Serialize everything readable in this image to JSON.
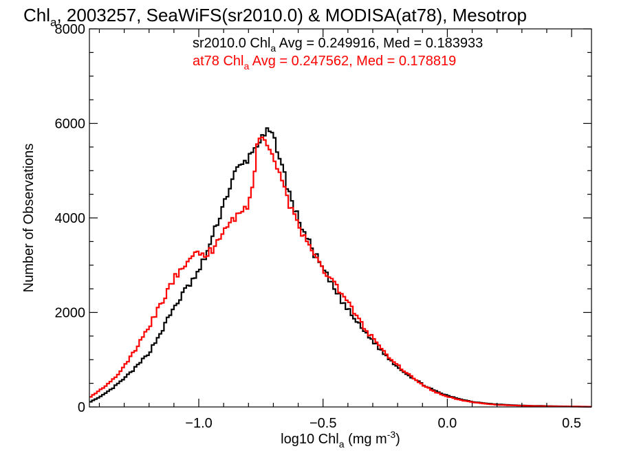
{
  "chart_data": {
    "type": "line",
    "step": true,
    "title": {
      "pre": "Chl",
      "sub": "a",
      "post": ", 2003257, SeaWiFS(sr2010.0) & MODISA(at78), Mesotrop"
    },
    "xlabel": {
      "pre": "log10 Chl",
      "sub": "a",
      "mid": " (mg m",
      "sup": "-3",
      "post": ")"
    },
    "ylabel": "Number of Observations",
    "xlim": [
      -1.44,
      0.58
    ],
    "ylim": [
      0,
      8000
    ],
    "xticks": [
      {
        "value": -1.0,
        "label": "−1.0"
      },
      {
        "value": -0.5,
        "label": "−0.5"
      },
      {
        "value": 0.0,
        "label": "0.0"
      },
      {
        "value": 0.5,
        "label": "0.5"
      }
    ],
    "yticks": [
      {
        "value": 0,
        "label": "0"
      },
      {
        "value": 2000,
        "label": "2000"
      },
      {
        "value": 4000,
        "label": "4000"
      },
      {
        "value": 6000,
        "label": "6000"
      },
      {
        "value": 8000,
        "label": "8000"
      }
    ],
    "annotations": [
      {
        "pre": "sr2010.0 Chl",
        "sub": "a",
        "post": " Avg = 0.249916, Med = 0.183933",
        "color": "#000000"
      },
      {
        "pre": "at78 Chl",
        "sub": "a",
        "post": " Avg = 0.247562, Med = 0.178819",
        "color": "#ff0000"
      }
    ],
    "series": [
      {
        "color": "#000000",
        "x": [
          -1.44,
          -1.4,
          -1.35,
          -1.3,
          -1.25,
          -1.2,
          -1.15,
          -1.1,
          -1.05,
          -1.0,
          -0.95,
          -0.9,
          -0.85,
          -0.82,
          -0.8,
          -0.78,
          -0.76,
          -0.74,
          -0.72,
          -0.7,
          -0.68,
          -0.66,
          -0.64,
          -0.62,
          -0.6,
          -0.58,
          -0.55,
          -0.5,
          -0.45,
          -0.4,
          -0.35,
          -0.3,
          -0.25,
          -0.2,
          -0.15,
          -0.1,
          -0.05,
          0.0,
          0.05,
          0.1,
          0.15,
          0.2,
          0.3,
          0.4,
          0.5,
          0.58
        ],
        "y": [
          100,
          200,
          380,
          600,
          850,
          1150,
          1600,
          2100,
          2500,
          2850,
          3500,
          4300,
          5000,
          5150,
          5250,
          5450,
          5600,
          5700,
          5850,
          5700,
          5400,
          5000,
          4600,
          4250,
          4000,
          3750,
          3400,
          2900,
          2450,
          2050,
          1700,
          1400,
          1100,
          850,
          650,
          480,
          340,
          240,
          170,
          110,
          80,
          55,
          30,
          20,
          10,
          5
        ]
      },
      {
        "color": "#ff0000",
        "x": [
          -1.44,
          -1.4,
          -1.35,
          -1.3,
          -1.25,
          -1.2,
          -1.15,
          -1.1,
          -1.05,
          -1.02,
          -1.0,
          -0.98,
          -0.95,
          -0.9,
          -0.85,
          -0.82,
          -0.8,
          -0.78,
          -0.76,
          -0.74,
          -0.72,
          -0.7,
          -0.68,
          -0.66,
          -0.64,
          -0.62,
          -0.6,
          -0.58,
          -0.55,
          -0.5,
          -0.45,
          -0.4,
          -0.35,
          -0.3,
          -0.25,
          -0.2,
          -0.15,
          -0.1,
          -0.05,
          0.0,
          0.05,
          0.1,
          0.15,
          0.2,
          0.3,
          0.4,
          0.5,
          0.58
        ],
        "y": [
          200,
          350,
          550,
          850,
          1250,
          1700,
          2200,
          2700,
          3100,
          3300,
          3200,
          3150,
          3300,
          3750,
          4050,
          4150,
          4300,
          4800,
          5700,
          5800,
          5500,
          5300,
          5050,
          4700,
          4350,
          4100,
          3850,
          3600,
          3300,
          2950,
          2600,
          2200,
          1800,
          1450,
          1150,
          880,
          660,
          460,
          320,
          220,
          150,
          100,
          70,
          45,
          25,
          15,
          8,
          5
        ]
      }
    ]
  }
}
